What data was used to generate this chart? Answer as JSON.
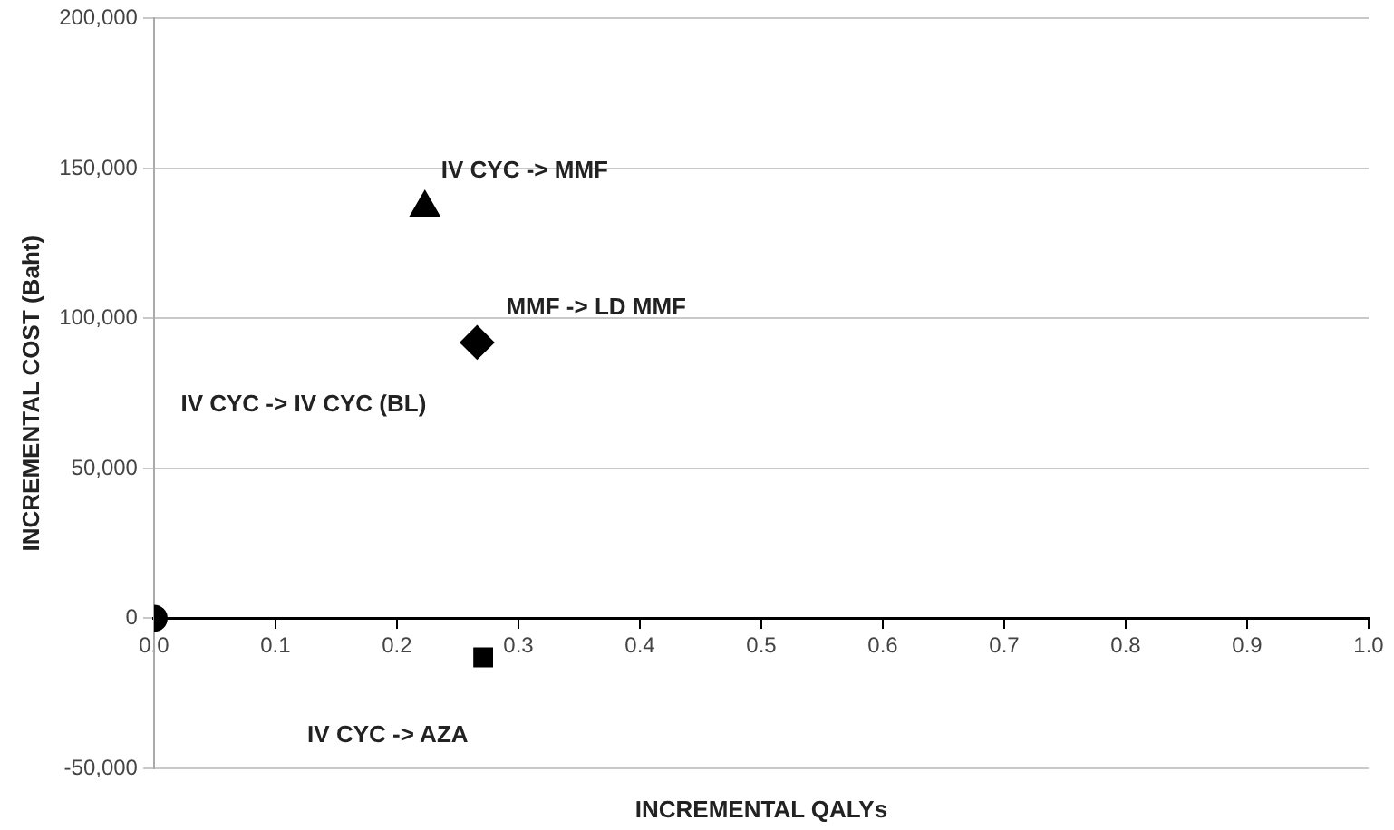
{
  "chart_data": {
    "type": "scatter",
    "xlabel": "INCREMENTAL QALYs",
    "ylabel": "INCREMENTAL COST (Baht)",
    "series": [
      {
        "color": "#000000",
        "marker": "triangle",
        "x": [
          0.223
        ],
        "values": [
          137000
        ]
      },
      {
        "color": "#000000",
        "marker": "diamond",
        "x": [
          0.266
        ],
        "values": [
          92000
        ]
      },
      {
        "color": "#000000",
        "marker": "circle",
        "x": [
          0
        ],
        "values": [
          0
        ]
      },
      {
        "color": "#000000",
        "marker": "square",
        "x": [
          0.271
        ],
        "values": [
          -13000
        ]
      }
    ],
    "annotations": [
      {
        "text": "IV CYC -> MMF",
        "x": 0.223,
        "y": 137000
      },
      {
        "text": "MMF -> LD MMF",
        "x": 0.266,
        "y": 92000
      },
      "IV CYC -> IV CYC (BL)",
      {
        "text": "IV CYC -> AZA",
        "x": 0.271,
        "y": -13000
      }
    ],
    "xlim": [
      0,
      1
    ],
    "xticks": [
      {
        "value": 0,
        "label": "0.0"
      },
      0.1,
      0.2,
      0.3,
      0.4,
      0.5,
      0.6,
      0.7,
      0.8,
      0.9,
      {
        "value": 1,
        "label": "1.0"
      }
    ],
    "ylim": [
      -50000,
      200000
    ],
    "yticks": [
      {
        "value": -50000,
        "label": "-50,000"
      },
      0,
      {
        "value": 50000,
        "label": "50,000"
      },
      {
        "value": 100000,
        "label": "100,000"
      },
      {
        "value": 150000,
        "label": "150,000"
      },
      {
        "value": 200000,
        "label": "200,000"
      }
    ],
    "grid": "y",
    "legend": false
  }
}
